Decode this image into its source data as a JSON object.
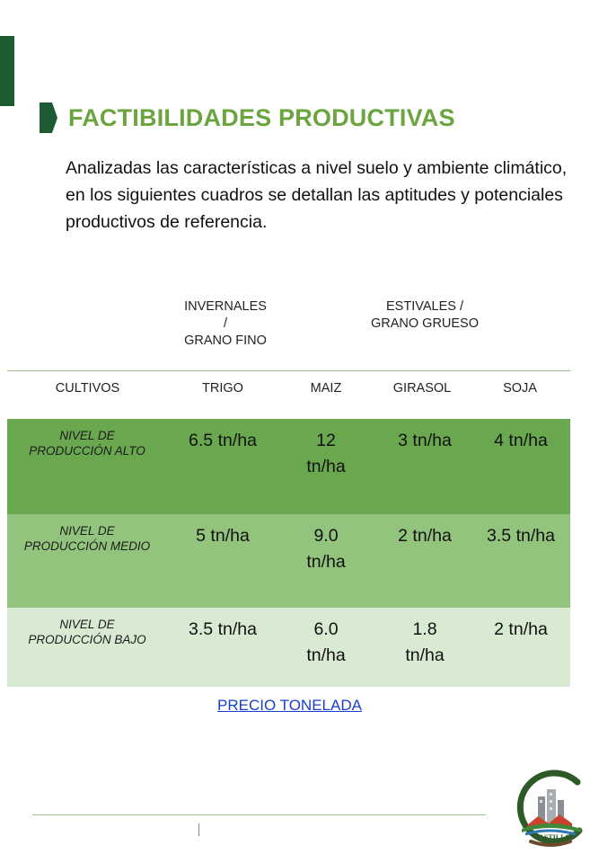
{
  "heading": {
    "title": "FACTIBILIDADES PRODUCTIVAS"
  },
  "intro": "Analizadas las características a nivel suelo y ambiente climático, en los siguientes cuadros se detallan las aptitudes y potenciales productivos de referencia.",
  "table": {
    "groups": {
      "invernales": [
        "INVERNALES",
        "/",
        "GRANO FINO"
      ],
      "estivales": [
        "ESTIVALES /",
        "GRANO GRUESO"
      ]
    },
    "columns": [
      "CULTIVOS",
      "TRIGO",
      "MAIZ",
      "GIRASOL",
      "SOJA"
    ],
    "rows": [
      {
        "label": [
          "NIVEL DE",
          "PRODUCCIÓN ALTO"
        ],
        "trigo": "6.5 tn/ha",
        "maiz": [
          "12",
          "tn/ha"
        ],
        "girasol": "3 tn/ha",
        "soja": "4 tn/ha",
        "color": "#6aa84f"
      },
      {
        "label": [
          "NIVEL DE",
          "PRODUCCIÓN MEDIO"
        ],
        "trigo": "5 tn/ha",
        "maiz": [
          "9.0",
          "tn/ha"
        ],
        "girasol": "2 tn/ha",
        "soja": "3.5 tn/ha",
        "color": "#93c47d"
      },
      {
        "label": [
          "NIVEL DE",
          "PRODUCCIÓN BAJO"
        ],
        "trigo": "3.5 tn/ha",
        "maiz": [
          "6.0",
          "tn/ha"
        ],
        "girasol": [
          "1.8",
          "tn/ha"
        ],
        "soja": "2 tn/ha",
        "color": "#d9ead3"
      }
    ]
  },
  "link": {
    "label": "PRECIO TONELADA"
  },
  "logo": {
    "text": "CASTILLO"
  },
  "colors": {
    "brand_dark": "#1e5a32",
    "title_green": "#6aa53f",
    "link_blue": "#1a3fcc"
  }
}
